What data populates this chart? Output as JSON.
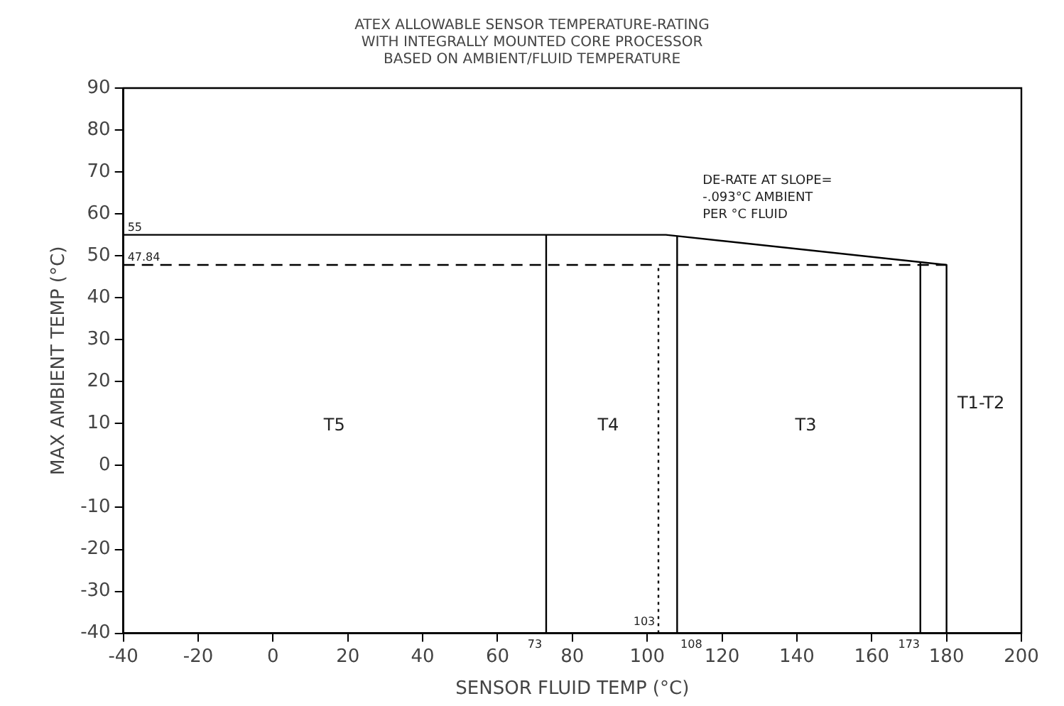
{
  "chart_data": {
    "type": "line",
    "title": "ATEX ALLOWABLE SENSOR TEMPERATURE-RATING\nWITH INTEGRALLY MOUNTED CORE PROCESSOR\nBASED ON AMBIENT/FLUID TEMPERATURE",
    "xlabel": "SENSOR FLUID TEMP (°C)",
    "ylabel": "MAX AMBIENT TEMP (°C)",
    "xlim": [
      -40,
      200
    ],
    "xticks": [
      -40,
      -20,
      0,
      20,
      40,
      60,
      80,
      100,
      120,
      140,
      160,
      180,
      200
    ],
    "ylim": [
      -40,
      90
    ],
    "yticks": [
      -40,
      -30,
      -20,
      -10,
      0,
      10,
      20,
      30,
      40,
      50,
      60,
      70,
      80,
      90
    ],
    "grid": false,
    "legend": false,
    "marker": "none",
    "series": [
      {
        "color": "#000000",
        "line_style": "solid",
        "x": [
          -40,
          105,
          180,
          180
        ],
        "values": [
          55,
          55,
          47.84,
          -40
        ]
      },
      {
        "color": "#000000",
        "line_style": "dashed",
        "x": [
          -40,
          180
        ],
        "values": [
          47.84,
          47.84
        ]
      },
      {
        "color": "#000000",
        "line_style": "solid",
        "x": [
          73,
          73
        ],
        "values": [
          -40,
          55
        ]
      },
      {
        "color": "#000000",
        "line_style": "dotted",
        "x": [
          103,
          103
        ],
        "values": [
          -40,
          47.84
        ]
      },
      {
        "color": "#000000",
        "line_style": "solid",
        "x": [
          108,
          108
        ],
        "values": [
          -40,
          54.7
        ]
      },
      {
        "color": "#000000",
        "line_style": "solid",
        "x": [
          173,
          173
        ],
        "values": [
          -40,
          48.5
        ]
      }
    ],
    "annotations": [
      {
        "text": "55",
        "x": -40,
        "y": 55
      },
      {
        "text": "47.84",
        "x": -40,
        "y": 47.84
      },
      {
        "text": "73",
        "x": 73,
        "y": -40
      },
      {
        "text": "103",
        "x": 103,
        "y": -40
      },
      {
        "text": "108",
        "x": 108,
        "y": -40
      },
      {
        "text": "173",
        "x": 173,
        "y": -40
      },
      "T5",
      "T4",
      "T3",
      "T1-T2",
      "DE-RATE AT SLOPE=\n-.093°C AMBIENT\nPER °C FLUID"
    ]
  }
}
